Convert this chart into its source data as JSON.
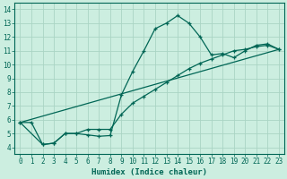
{
  "xlabel": "Humidex (Indice chaleur)",
  "ylabel": "",
  "bg_color": "#cceee0",
  "grid_color": "#aad4c4",
  "line_color": "#006655",
  "xlim": [
    -0.5,
    23.5
  ],
  "ylim": [
    3.5,
    14.5
  ],
  "xticks": [
    0,
    1,
    2,
    3,
    4,
    5,
    6,
    7,
    8,
    9,
    10,
    11,
    12,
    13,
    14,
    15,
    16,
    17,
    18,
    19,
    20,
    21,
    22,
    23
  ],
  "yticks": [
    4,
    5,
    6,
    7,
    8,
    9,
    10,
    11,
    12,
    13,
    14
  ],
  "line1_x": [
    0,
    1,
    2,
    3,
    4,
    5,
    6,
    7,
    8,
    9,
    10,
    11,
    12,
    13,
    14,
    15,
    16,
    17,
    18,
    19,
    20,
    21,
    22,
    23
  ],
  "line1_y": [
    5.8,
    5.8,
    4.2,
    4.3,
    5.0,
    5.0,
    4.9,
    4.8,
    4.85,
    7.8,
    9.5,
    11.0,
    12.6,
    13.0,
    13.55,
    13.0,
    12.0,
    10.7,
    10.8,
    10.5,
    11.0,
    11.4,
    11.5,
    11.1
  ],
  "line2_x": [
    0,
    2,
    3,
    4,
    5,
    6,
    7,
    8,
    9,
    10,
    11,
    12,
    13,
    14,
    15,
    16,
    17,
    18,
    19,
    20,
    21,
    22,
    23
  ],
  "line2_y": [
    5.8,
    4.2,
    4.3,
    5.0,
    5.0,
    5.3,
    5.3,
    5.3,
    6.4,
    7.2,
    7.7,
    8.2,
    8.7,
    9.2,
    9.7,
    10.1,
    10.4,
    10.7,
    11.0,
    11.1,
    11.3,
    11.4,
    11.1
  ],
  "line3_x": [
    0,
    23
  ],
  "line3_y": [
    5.8,
    11.1
  ],
  "tick_fontsize": 5.5,
  "xlabel_fontsize": 6.5
}
